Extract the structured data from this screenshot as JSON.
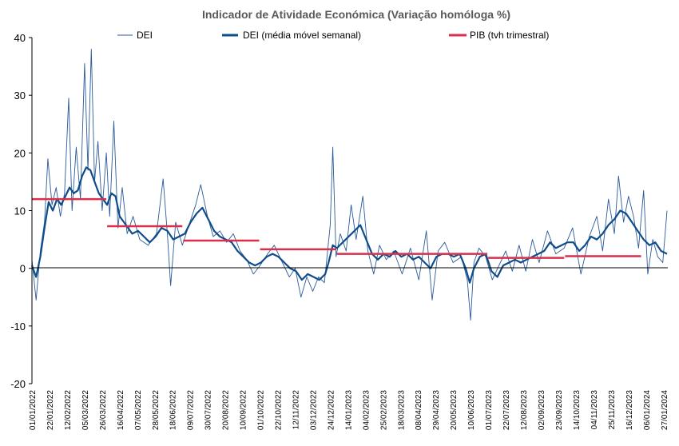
{
  "chart_data": {
    "type": "line",
    "title": "Indicador de Atividade Económica (Variação homóloga %)",
    "xlabel": "",
    "ylabel": "",
    "ylim": [
      -20,
      40
    ],
    "yticks": [
      -20,
      -10,
      0,
      10,
      20,
      30,
      40
    ],
    "grid": false,
    "legend_position": "top",
    "xlim": [
      "2022-01-01",
      "2024-02-01"
    ],
    "x_tick_labels": [
      "01/01/2022",
      "22/01/2022",
      "12/02/2022",
      "05/03/2022",
      "26/03/2022",
      "16/04/2022",
      "07/05/2022",
      "28/05/2022",
      "18/06/2022",
      "09/07/2022",
      "30/07/2022",
      "20/08/2022",
      "10/09/2022",
      "01/10/2022",
      "22/10/2022",
      "12/11/2022",
      "03/12/2022",
      "24/12/2022",
      "14/01/2023",
      "04/02/2023",
      "25/02/2023",
      "18/03/2023",
      "08/04/2023",
      "29/04/2023",
      "20/05/2023",
      "10/06/2023",
      "01/07/2023",
      "22/07/2023",
      "12/08/2023",
      "02/09/2023",
      "23/09/2023",
      "14/10/2023",
      "04/11/2023",
      "25/11/2023",
      "16/12/2023",
      "06/01/2024",
      "27/01/2024"
    ],
    "series": [
      {
        "name": "DEI",
        "style": "thin",
        "color": "#2a5a9a",
        "points": [
          [
            "2022-01-01",
            1.5
          ],
          [
            "2022-01-06",
            -5.5
          ],
          [
            "2022-01-11",
            3.0
          ],
          [
            "2022-01-16",
            8.0
          ],
          [
            "2022-01-20",
            19.0
          ],
          [
            "2022-01-25",
            11.0
          ],
          [
            "2022-01-30",
            14.0
          ],
          [
            "2022-02-04",
            9.0
          ],
          [
            "2022-02-09",
            13.0
          ],
          [
            "2022-02-14",
            29.5
          ],
          [
            "2022-02-18",
            10.0
          ],
          [
            "2022-02-23",
            21.0
          ],
          [
            "2022-02-28",
            12.0
          ],
          [
            "2022-03-05",
            35.5
          ],
          [
            "2022-03-09",
            17.0
          ],
          [
            "2022-03-13",
            38.0
          ],
          [
            "2022-03-17",
            15.0
          ],
          [
            "2022-03-21",
            22.0
          ],
          [
            "2022-03-26",
            10.0
          ],
          [
            "2022-03-31",
            20.0
          ],
          [
            "2022-04-04",
            9.0
          ],
          [
            "2022-04-09",
            25.5
          ],
          [
            "2022-04-14",
            7.0
          ],
          [
            "2022-04-19",
            14.0
          ],
          [
            "2022-04-25",
            6.0
          ],
          [
            "2022-05-02",
            9.0
          ],
          [
            "2022-05-10",
            5.0
          ],
          [
            "2022-05-20",
            4.0
          ],
          [
            "2022-05-30",
            6.0
          ],
          [
            "2022-06-07",
            15.5
          ],
          [
            "2022-06-12",
            6.0
          ],
          [
            "2022-06-16",
            -3.0
          ],
          [
            "2022-06-22",
            8.0
          ],
          [
            "2022-06-30",
            4.0
          ],
          [
            "2022-07-08",
            7.5
          ],
          [
            "2022-07-16",
            11.0
          ],
          [
            "2022-07-22",
            14.5
          ],
          [
            "2022-07-30",
            9.0
          ],
          [
            "2022-08-06",
            5.5
          ],
          [
            "2022-08-14",
            6.5
          ],
          [
            "2022-08-22",
            4.5
          ],
          [
            "2022-08-30",
            6.0
          ],
          [
            "2022-09-07",
            3.0
          ],
          [
            "2022-09-15",
            1.5
          ],
          [
            "2022-09-23",
            -1.0
          ],
          [
            "2022-10-01",
            0.5
          ],
          [
            "2022-10-10",
            2.5
          ],
          [
            "2022-10-18",
            4.0
          ],
          [
            "2022-10-26",
            1.5
          ],
          [
            "2022-11-05",
            -1.5
          ],
          [
            "2022-11-12",
            0.0
          ],
          [
            "2022-11-19",
            -5.0
          ],
          [
            "2022-11-26",
            -1.5
          ],
          [
            "2022-12-03",
            -4.0
          ],
          [
            "2022-12-10",
            -1.5
          ],
          [
            "2022-12-17",
            -2.5
          ],
          [
            "2022-12-24",
            7.5
          ],
          [
            "2022-12-27",
            21.0
          ],
          [
            "2022-12-31",
            2.0
          ],
          [
            "2023-01-05",
            6.0
          ],
          [
            "2023-01-12",
            3.0
          ],
          [
            "2023-01-18",
            11.0
          ],
          [
            "2023-01-24",
            5.0
          ],
          [
            "2023-02-01",
            12.5
          ],
          [
            "2023-02-07",
            3.0
          ],
          [
            "2023-02-14",
            -1.0
          ],
          [
            "2023-02-21",
            4.0
          ],
          [
            "2023-03-01",
            1.5
          ],
          [
            "2023-03-10",
            3.0
          ],
          [
            "2023-03-20",
            -1.0
          ],
          [
            "2023-03-30",
            3.5
          ],
          [
            "2023-04-09",
            -2.0
          ],
          [
            "2023-04-18",
            6.5
          ],
          [
            "2023-04-25",
            -5.5
          ],
          [
            "2023-05-02",
            3.0
          ],
          [
            "2023-05-10",
            4.5
          ],
          [
            "2023-05-20",
            1.0
          ],
          [
            "2023-05-30",
            2.0
          ],
          [
            "2023-06-06",
            -2.0
          ],
          [
            "2023-06-10",
            -9.0
          ],
          [
            "2023-06-14",
            1.0
          ],
          [
            "2023-06-20",
            3.5
          ],
          [
            "2023-06-28",
            2.0
          ],
          [
            "2023-07-06",
            -2.0
          ],
          [
            "2023-07-14",
            0.5
          ],
          [
            "2023-07-22",
            3.0
          ],
          [
            "2023-07-30",
            -0.5
          ],
          [
            "2023-08-07",
            4.0
          ],
          [
            "2023-08-15",
            -0.5
          ],
          [
            "2023-08-23",
            5.0
          ],
          [
            "2023-08-31",
            1.0
          ],
          [
            "2023-09-10",
            6.5
          ],
          [
            "2023-09-20",
            2.5
          ],
          [
            "2023-09-30",
            3.5
          ],
          [
            "2023-10-10",
            7.0
          ],
          [
            "2023-10-20",
            -1.0
          ],
          [
            "2023-10-30",
            5.5
          ],
          [
            "2023-11-08",
            9.0
          ],
          [
            "2023-11-15",
            3.0
          ],
          [
            "2023-11-22",
            12.0
          ],
          [
            "2023-11-29",
            6.0
          ],
          [
            "2023-12-04",
            16.0
          ],
          [
            "2023-12-10",
            8.0
          ],
          [
            "2023-12-16",
            12.5
          ],
          [
            "2023-12-22",
            9.0
          ],
          [
            "2023-12-28",
            3.5
          ],
          [
            "2024-01-03",
            13.5
          ],
          [
            "2024-01-08",
            -1.0
          ],
          [
            "2024-01-14",
            5.0
          ],
          [
            "2024-01-20",
            2.0
          ],
          [
            "2024-01-26",
            1.0
          ],
          [
            "2024-01-31",
            10.0
          ]
        ]
      },
      {
        "name": "DEI (média móvel semanal)",
        "style": "thick",
        "color": "#0f4c8a",
        "points": [
          [
            "2022-01-01",
            0.5
          ],
          [
            "2022-01-06",
            -1.5
          ],
          [
            "2022-01-11",
            2.0
          ],
          [
            "2022-01-16",
            7.0
          ],
          [
            "2022-01-21",
            11.5
          ],
          [
            "2022-01-26",
            10.0
          ],
          [
            "2022-01-31",
            12.0
          ],
          [
            "2022-02-05",
            11.0
          ],
          [
            "2022-02-10",
            12.5
          ],
          [
            "2022-02-15",
            14.0
          ],
          [
            "2022-02-20",
            13.0
          ],
          [
            "2022-02-25",
            13.5
          ],
          [
            "2022-03-02",
            16.0
          ],
          [
            "2022-03-07",
            17.5
          ],
          [
            "2022-03-12",
            17.0
          ],
          [
            "2022-03-17",
            15.0
          ],
          [
            "2022-03-22",
            13.0
          ],
          [
            "2022-03-27",
            12.0
          ],
          [
            "2022-04-01",
            11.0
          ],
          [
            "2022-04-06",
            13.0
          ],
          [
            "2022-04-11",
            12.5
          ],
          [
            "2022-04-16",
            9.0
          ],
          [
            "2022-04-21",
            8.0
          ],
          [
            "2022-04-26",
            7.0
          ],
          [
            "2022-05-01",
            6.0
          ],
          [
            "2022-05-08",
            6.5
          ],
          [
            "2022-05-15",
            5.5
          ],
          [
            "2022-05-22",
            4.5
          ],
          [
            "2022-05-29",
            5.5
          ],
          [
            "2022-06-05",
            7.0
          ],
          [
            "2022-06-12",
            6.5
          ],
          [
            "2022-06-19",
            5.0
          ],
          [
            "2022-06-26",
            5.5
          ],
          [
            "2022-07-03",
            6.0
          ],
          [
            "2022-07-10",
            8.0
          ],
          [
            "2022-07-17",
            9.5
          ],
          [
            "2022-07-24",
            10.5
          ],
          [
            "2022-07-31",
            8.5
          ],
          [
            "2022-08-07",
            6.5
          ],
          [
            "2022-08-14",
            5.5
          ],
          [
            "2022-08-21",
            5.0
          ],
          [
            "2022-08-28",
            4.5
          ],
          [
            "2022-09-04",
            3.0
          ],
          [
            "2022-09-11",
            2.0
          ],
          [
            "2022-09-18",
            1.0
          ],
          [
            "2022-09-25",
            0.5
          ],
          [
            "2022-10-02",
            1.0
          ],
          [
            "2022-10-09",
            2.0
          ],
          [
            "2022-10-16",
            2.5
          ],
          [
            "2022-10-23",
            2.0
          ],
          [
            "2022-10-30",
            1.0
          ],
          [
            "2022-11-06",
            0.0
          ],
          [
            "2022-11-13",
            -0.5
          ],
          [
            "2022-11-20",
            -2.0
          ],
          [
            "2022-11-27",
            -1.0
          ],
          [
            "2022-12-04",
            -1.5
          ],
          [
            "2022-12-11",
            -2.0
          ],
          [
            "2022-12-18",
            -1.0
          ],
          [
            "2022-12-22",
            1.0
          ],
          [
            "2022-12-27",
            4.0
          ],
          [
            "2023-01-01",
            3.5
          ],
          [
            "2023-01-08",
            4.5
          ],
          [
            "2023-01-15",
            5.5
          ],
          [
            "2023-01-22",
            6.5
          ],
          [
            "2023-01-29",
            7.5
          ],
          [
            "2023-02-05",
            5.0
          ],
          [
            "2023-02-12",
            2.5
          ],
          [
            "2023-02-19",
            1.5
          ],
          [
            "2023-02-26",
            2.5
          ],
          [
            "2023-03-05",
            2.0
          ],
          [
            "2023-03-12",
            3.0
          ],
          [
            "2023-03-19",
            2.0
          ],
          [
            "2023-03-26",
            2.5
          ],
          [
            "2023-04-02",
            1.5
          ],
          [
            "2023-04-09",
            2.0
          ],
          [
            "2023-04-16",
            1.0
          ],
          [
            "2023-04-23",
            0.0
          ],
          [
            "2023-04-30",
            2.0
          ],
          [
            "2023-05-07",
            2.5
          ],
          [
            "2023-05-14",
            2.5
          ],
          [
            "2023-05-21",
            2.0
          ],
          [
            "2023-05-28",
            2.5
          ],
          [
            "2023-06-04",
            0.0
          ],
          [
            "2023-06-09",
            -2.5
          ],
          [
            "2023-06-14",
            0.0
          ],
          [
            "2023-06-21",
            2.0
          ],
          [
            "2023-06-28",
            2.5
          ],
          [
            "2023-07-05",
            -0.5
          ],
          [
            "2023-07-12",
            -1.5
          ],
          [
            "2023-07-19",
            0.5
          ],
          [
            "2023-07-26",
            1.0
          ],
          [
            "2023-08-02",
            1.5
          ],
          [
            "2023-08-09",
            1.0
          ],
          [
            "2023-08-16",
            1.5
          ],
          [
            "2023-08-23",
            2.0
          ],
          [
            "2023-08-30",
            2.5
          ],
          [
            "2023-09-06",
            3.0
          ],
          [
            "2023-09-13",
            4.5
          ],
          [
            "2023-09-20",
            3.5
          ],
          [
            "2023-09-27",
            4.0
          ],
          [
            "2023-10-04",
            4.5
          ],
          [
            "2023-10-11",
            4.5
          ],
          [
            "2023-10-18",
            3.0
          ],
          [
            "2023-10-25",
            4.0
          ],
          [
            "2023-11-01",
            5.5
          ],
          [
            "2023-11-08",
            5.0
          ],
          [
            "2023-11-15",
            6.0
          ],
          [
            "2023-11-22",
            7.5
          ],
          [
            "2023-11-29",
            8.5
          ],
          [
            "2023-12-06",
            10.0
          ],
          [
            "2023-12-13",
            9.5
          ],
          [
            "2023-12-20",
            8.0
          ],
          [
            "2023-12-27",
            6.5
          ],
          [
            "2024-01-03",
            5.0
          ],
          [
            "2024-01-10",
            4.0
          ],
          [
            "2024-01-17",
            4.5
          ],
          [
            "2024-01-24",
            3.0
          ],
          [
            "2024-01-31",
            2.5
          ]
        ]
      },
      {
        "name": "PIB (tvh trimestral)",
        "style": "step",
        "color": "#d6304a",
        "segments": [
          {
            "x0": "2022-01-01",
            "x1": "2022-03-31",
            "value": 12.0
          },
          {
            "x0": "2022-04-01",
            "x1": "2022-06-30",
            "value": 7.3
          },
          {
            "x0": "2022-07-01",
            "x1": "2022-09-30",
            "value": 4.8
          },
          {
            "x0": "2022-10-01",
            "x1": "2022-12-31",
            "value": 3.3
          },
          {
            "x0": "2023-01-01",
            "x1": "2023-06-30",
            "value": 2.5
          },
          {
            "x0": "2023-07-01",
            "x1": "2023-09-30",
            "value": 1.8
          },
          {
            "x0": "2023-10-01",
            "x1": "2023-12-31",
            "value": 2.1
          }
        ]
      }
    ]
  }
}
